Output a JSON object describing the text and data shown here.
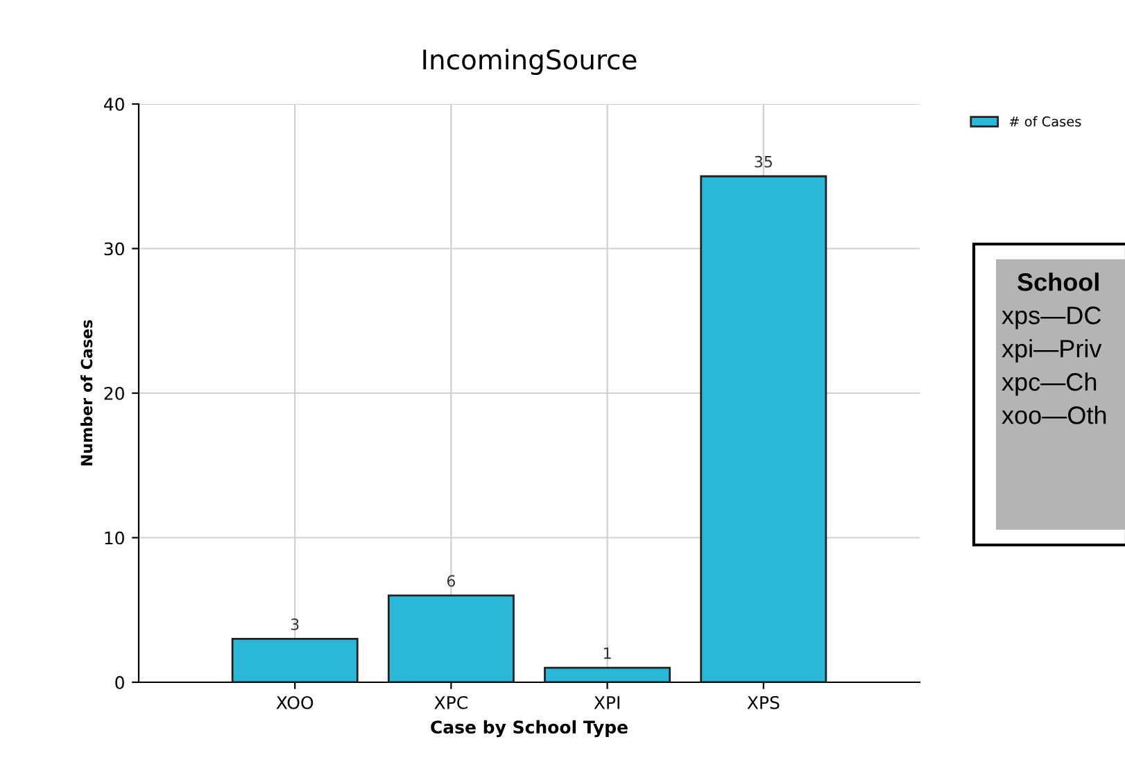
{
  "chart_data": {
    "type": "bar",
    "title": "IncomingSource",
    "xlabel": "Case by School Type",
    "ylabel": "Number of Cases",
    "categories": [
      "XOO",
      "XPC",
      "XPI",
      "XPS"
    ],
    "series": [
      {
        "name": "# of Cases",
        "color": "#2ab8d8",
        "values": [
          3,
          6,
          1,
          35
        ]
      }
    ],
    "ylim": [
      0,
      40
    ],
    "yticks": [
      0,
      10,
      20,
      30,
      40
    ],
    "grid": true,
    "legend": "top right",
    "data_labels": true,
    "annotations": [
      "School",
      "xps—DC",
      "xpi—Priv",
      "xpc—Ch",
      "xoo—Oth"
    ]
  }
}
